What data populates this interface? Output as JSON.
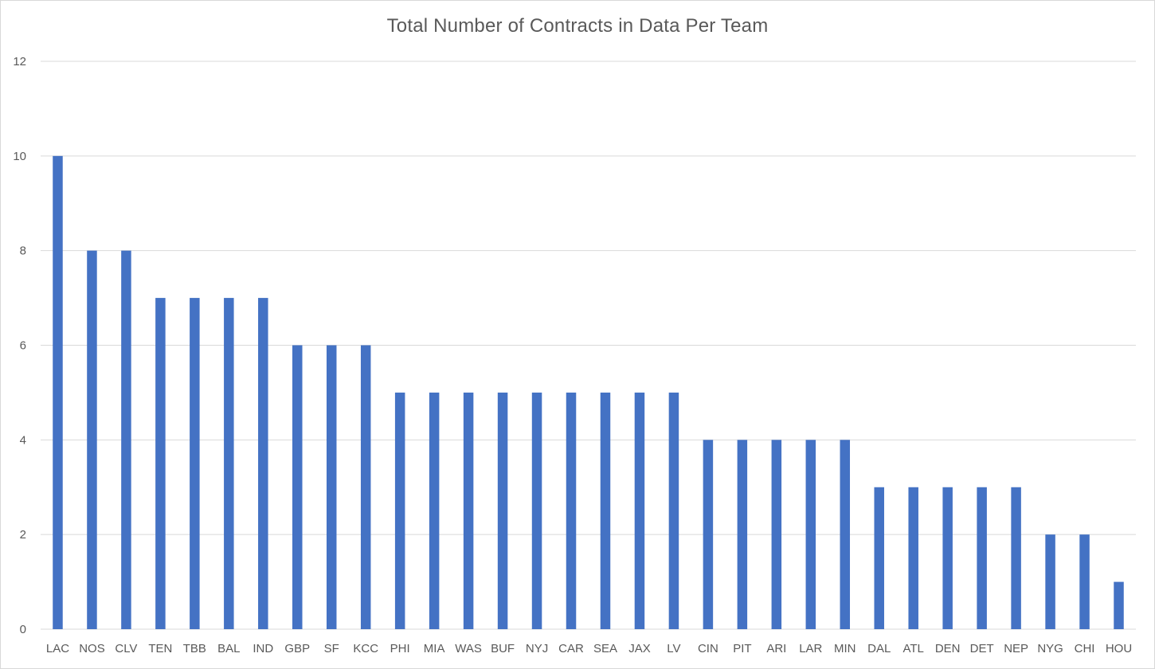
{
  "chart_data": {
    "type": "bar",
    "title": "Total Number of Contracts in Data Per Team",
    "xlabel": "",
    "ylabel": "",
    "ylim": [
      0,
      12
    ],
    "y_ticks": [
      "0",
      "2",
      "4",
      "6",
      "8",
      "10",
      "12"
    ],
    "grid": true,
    "legend": "none",
    "categories": [
      "LAC",
      "NOS",
      "CLV",
      "TEN",
      "TBB",
      "BAL",
      "IND",
      "GBP",
      "SF",
      "KCC",
      "PHI",
      "MIA",
      "WAS",
      "BUF",
      "NYJ",
      "CAR",
      "SEA",
      "JAX",
      "LV",
      "CIN",
      "PIT",
      "ARI",
      "LAR",
      "MIN",
      "DAL",
      "ATL",
      "DEN",
      "DET",
      "NEP",
      "NYG",
      "CHI",
      "HOU"
    ],
    "values": [
      10,
      8,
      8,
      7,
      7,
      7,
      7,
      6,
      6,
      6,
      5,
      5,
      5,
      5,
      5,
      5,
      5,
      5,
      5,
      4,
      4,
      4,
      4,
      4,
      3,
      3,
      3,
      3,
      3,
      2,
      2,
      1
    ],
    "colors": {
      "bar": "#4472c4",
      "grid": "#d9d9d9",
      "text": "#595959"
    }
  }
}
